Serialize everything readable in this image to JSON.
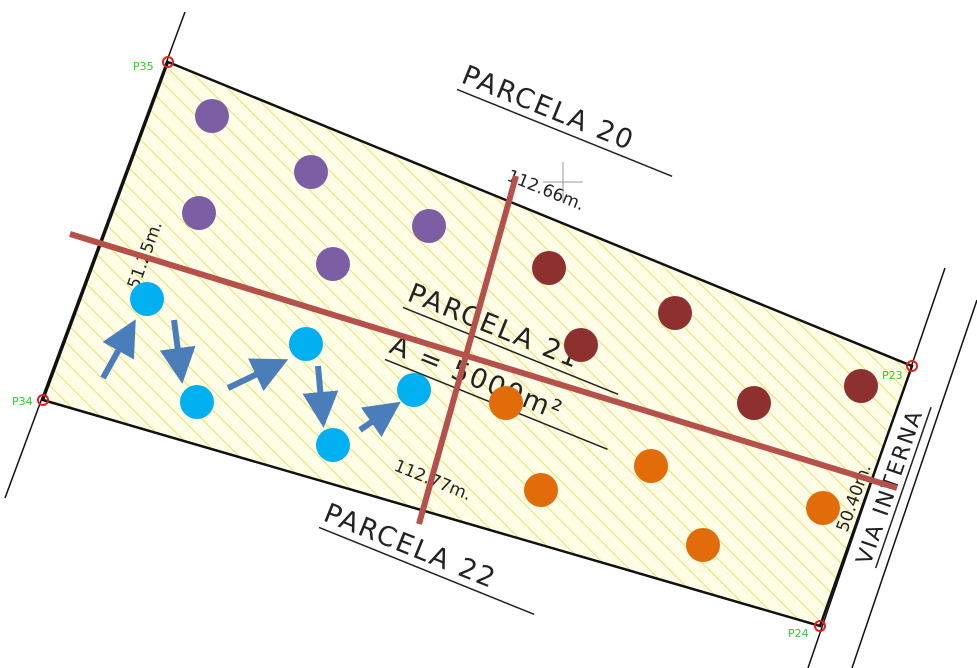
{
  "labels": {
    "parcela_20": "PARCELA 20",
    "parcela_21": "PARCELA 21",
    "parcela_22": "PARCELA 22",
    "via_interna": "VIA INTERNA",
    "area": "A = 5000m²",
    "dim_top": "112.66m.",
    "dim_bottom": "112.77m.",
    "dim_left": "51.25m.",
    "dim_right": "50.40m."
  },
  "points": {
    "p35": "P35",
    "p34": "P34",
    "p23": "P23",
    "p24": "P24"
  },
  "colors": {
    "outline": "#111111",
    "hatch": "#e8e070",
    "fill": "#fffde6",
    "axis_line": "#b5504a",
    "purple": "#7b5ea3",
    "dark_red": "#8e3030",
    "blue": "#00b0f0",
    "orange": "#e36c0a",
    "arrow": "#4a7ebb",
    "vertex": "#e02020"
  }
}
